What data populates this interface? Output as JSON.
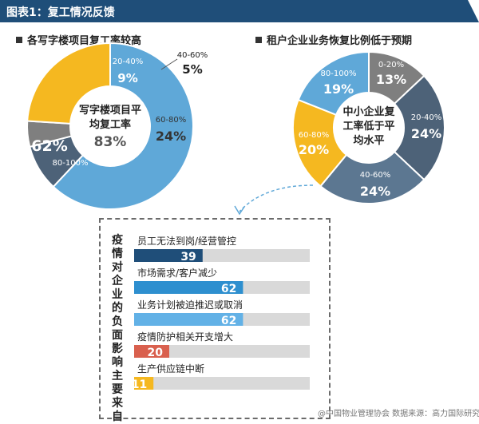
{
  "header": {
    "title": "图表1：复工情况反馈"
  },
  "left_chart_title": "各写字楼项目复工率较高",
  "right_chart_title": "租户企业业务恢复比例低于预期",
  "impact_title": "疫情对企业的负面影响主要来自",
  "watermark": "@中国物业管理协会 数据来源：高力国际研究部",
  "colors": {
    "header": "#1f4e79",
    "light_blue": "#5fa8d8",
    "mid_gray": "#7f7f7f",
    "dark_slate": "#4d6278",
    "slate": "#5c7791",
    "yellow": "#f5b820",
    "navy_bar": "#1f4e79",
    "blue_bar": "#2e8fcf",
    "light_blue_bar": "#62b1e6",
    "red_bar": "#d9604e",
    "yellow_bar": "#f5b820",
    "track": "#d9d9d9"
  },
  "chart_data": [
    {
      "type": "pie",
      "title": "各写字楼项目复工率较高",
      "center_label": "写字楼项目平均复工率",
      "center_value": "83%",
      "categories": [
        "80-100%",
        "20-40%",
        "40-60%",
        "60-80%"
      ],
      "values": [
        62,
        9,
        5,
        24
      ],
      "value_labels": [
        "62%",
        "9%",
        "5%",
        "24%"
      ],
      "colors": [
        "#5fa8d8",
        "#4d6278",
        "#7f7f7f",
        "#f5b820"
      ]
    },
    {
      "type": "pie",
      "title": "租户企业业务恢复比例低于预期",
      "center_label": "中小企业复工率低于平均水平",
      "categories": [
        "0-20%",
        "20-40%",
        "40-60%",
        "60-80%",
        "80-100%"
      ],
      "values": [
        13,
        24,
        24,
        20,
        19
      ],
      "value_labels": [
        "13%",
        "24%",
        "24%",
        "20%",
        "19%"
      ],
      "colors": [
        "#7f7f7f",
        "#4d6278",
        "#5c7791",
        "#f5b820",
        "#5fa8d8"
      ]
    },
    {
      "type": "bar",
      "orientation": "horizontal",
      "title": "疫情对企业的负面影响主要来自",
      "categories": [
        "员工无法到岗/经营管控",
        "市场需求/客户减少",
        "业务计划被迫推迟或取消",
        "疫情防护相关开支增大",
        "生产供应链中断"
      ],
      "values": [
        39,
        62,
        62,
        20,
        11
      ],
      "value_labels": [
        "39",
        "62",
        "62",
        "20",
        "11"
      ],
      "xlim": [
        0,
        100
      ],
      "colors": [
        "#1f4e79",
        "#2e8fcf",
        "#62b1e6",
        "#d9604e",
        "#f5b820"
      ]
    }
  ]
}
